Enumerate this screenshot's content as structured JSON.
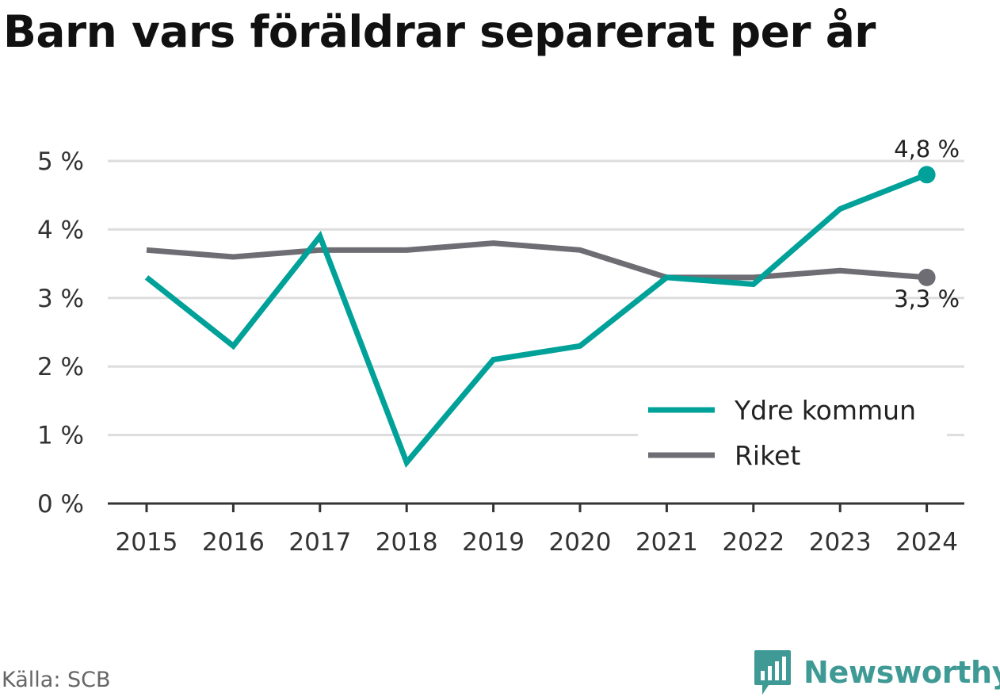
{
  "title": "Barn vars föräldrar separerat per år",
  "source": "Källa: SCB",
  "brand": {
    "name": "Newsworthy",
    "logo_icon": "bar-chart-speech-bubble-icon"
  },
  "colors": {
    "accent": "#00a199",
    "secondary": "#6e6d73",
    "grid": "#dddddd",
    "axis": "#333333",
    "brand": "#3f9a96"
  },
  "chart_data": {
    "type": "line",
    "x": [
      "2015",
      "2016",
      "2017",
      "2018",
      "2019",
      "2020",
      "2021",
      "2022",
      "2023",
      "2024"
    ],
    "series": [
      {
        "name": "Ydre kommun",
        "color": "#00a199",
        "values": [
          3.3,
          2.3,
          3.9,
          0.6,
          2.1,
          2.3,
          3.3,
          3.2,
          4.3,
          4.8
        ],
        "end_label": "4,8 %"
      },
      {
        "name": "Riket",
        "color": "#6e6d73",
        "values": [
          3.7,
          3.6,
          3.7,
          3.7,
          3.8,
          3.7,
          3.3,
          3.3,
          3.4,
          3.3
        ],
        "end_label": "3,3 %"
      }
    ],
    "yticks": [
      0,
      1,
      2,
      3,
      4,
      5
    ],
    "ytick_labels": [
      "0 %",
      "1 %",
      "2 %",
      "3 %",
      "4 %",
      "5 %"
    ],
    "ylim": [
      0,
      5
    ],
    "grid": true,
    "legend": "bottom-right"
  }
}
